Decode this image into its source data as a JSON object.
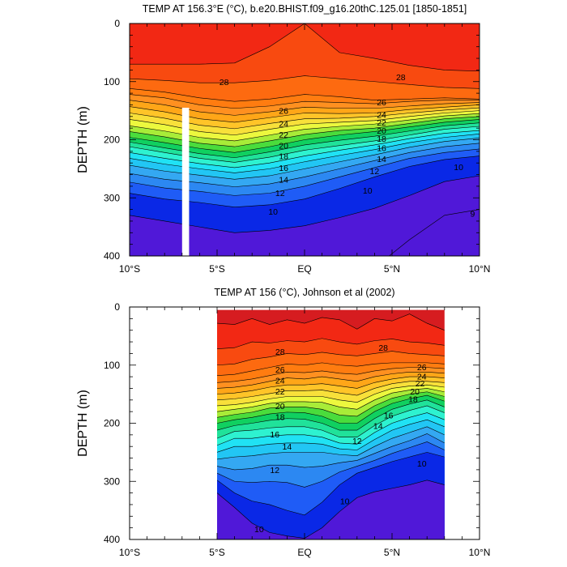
{
  "chart_data": [
    {
      "type": "heatmap",
      "subtype": "filled-contour",
      "title": "TEMP AT 156.3°E (°C), b.e20.BHIST.f09_g16.20thC.125.01 [1850-1851]",
      "ylabel": "DEPTH (m)",
      "xlabel": "",
      "xlim": [
        -10,
        10
      ],
      "ylim": [
        0,
        400
      ],
      "y_inverted": true,
      "x_ticks": [
        {
          "value": -10,
          "label": "10°S"
        },
        {
          "value": -5,
          "label": "5°S"
        },
        {
          "value": 0,
          "label": "EQ"
        },
        {
          "value": 5,
          "label": "5°N"
        },
        {
          "value": 10,
          "label": "10°N"
        }
      ],
      "y_ticks": [
        {
          "value": 0,
          "label": "0"
        },
        {
          "value": 100,
          "label": "100"
        },
        {
          "value": 200,
          "label": "200"
        },
        {
          "value": 300,
          "label": "300"
        },
        {
          "value": 400,
          "label": "400"
        }
      ],
      "contour_levels": [
        8,
        9,
        10,
        11,
        12,
        13,
        14,
        15,
        16,
        17,
        18,
        19,
        20,
        21,
        22,
        23,
        24,
        25,
        26,
        27,
        28,
        29
      ],
      "data_extent_x": [
        -10,
        10
      ],
      "missing_x": [
        -7,
        -6.6
      ],
      "missing_depth_from": 145,
      "isotherm_depths": {
        "x": [
          -10,
          -8,
          -6,
          -4,
          -2,
          0,
          2,
          4,
          6,
          8,
          10
        ],
        "29": [
          0,
          0,
          0,
          0,
          0,
          0,
          0,
          0,
          0,
          0,
          0
        ],
        "28": [
          70,
          70,
          70,
          68,
          40,
          0,
          50,
          60,
          72,
          80,
          82
        ],
        "27": [
          95,
          98,
          102,
          102,
          98,
          90,
          95,
          100,
          105,
          110,
          112
        ],
        "26": [
          112,
          118,
          128,
          134,
          130,
          122,
          126,
          132,
          130,
          128,
          130
        ],
        "25": [
          122,
          128,
          140,
          146,
          142,
          134,
          136,
          138,
          134,
          132,
          132
        ],
        "24": [
          132,
          140,
          152,
          158,
          152,
          144,
          146,
          146,
          142,
          138,
          136
        ],
        "23": [
          143,
          152,
          164,
          170,
          162,
          154,
          155,
          154,
          148,
          144,
          140
        ],
        "22": [
          154,
          163,
          175,
          181,
          172,
          164,
          163,
          160,
          154,
          149,
          145
        ],
        "21": [
          165,
          174,
          186,
          192,
          182,
          173,
          170,
          167,
          160,
          154,
          150
        ],
        "20": [
          176,
          185,
          196,
          202,
          192,
          182,
          177,
          173,
          166,
          159,
          155
        ],
        "19": [
          186,
          195,
          206,
          212,
          202,
          191,
          184,
          180,
          172,
          164,
          160
        ],
        "18": [
          196,
          205,
          215,
          222,
          212,
          200,
          192,
          186,
          178,
          170,
          165
        ],
        "17": [
          204,
          214,
          224,
          231,
          221,
          209,
          201,
          194,
          185,
          176,
          171
        ],
        "16": [
          212,
          222,
          232,
          239,
          230,
          218,
          210,
          202,
          192,
          182,
          177
        ],
        "15": [
          222,
          232,
          241,
          248,
          240,
          228,
          218,
          209,
          198,
          189,
          184
        ],
        "14": [
          232,
          242,
          250,
          257,
          250,
          238,
          227,
          217,
          205,
          196,
          190
        ],
        "13": [
          244,
          254,
          261,
          268,
          262,
          250,
          238,
          226,
          213,
          203,
          197
        ],
        "12": [
          258,
          268,
          274,
          281,
          276,
          264,
          250,
          236,
          222,
          212,
          206
        ],
        "11": [
          273,
          283,
          289,
          296,
          292,
          280,
          264,
          248,
          232,
          222,
          216
        ],
        "10": [
          292,
          302,
          308,
          316,
          312,
          302,
          284,
          264,
          246,
          234,
          228
        ],
        "9": [
          330,
          340,
          350,
          360,
          356,
          348,
          334,
          318,
          296,
          272,
          262
        ],
        "8": [
          430,
          430,
          430,
          430,
          430,
          430,
          430,
          420,
          372,
          330,
          320
        ]
      },
      "contour_labels": [
        {
          "text": "28",
          "x": -4.6,
          "y": 100
        },
        {
          "text": "28",
          "x": 5.5,
          "y": 92
        },
        {
          "text": "26",
          "x": -1.2,
          "y": 150
        },
        {
          "text": "26",
          "x": 4.4,
          "y": 135
        },
        {
          "text": "24",
          "x": -1.2,
          "y": 172
        },
        {
          "text": "24",
          "x": 4.4,
          "y": 157
        },
        {
          "text": "22",
          "x": -1.2,
          "y": 191
        },
        {
          "text": "22",
          "x": 4.4,
          "y": 170
        },
        {
          "text": "20",
          "x": -1.2,
          "y": 210
        },
        {
          "text": "20",
          "x": 4.4,
          "y": 184
        },
        {
          "text": "18",
          "x": -1.2,
          "y": 228
        },
        {
          "text": "18",
          "x": 4.4,
          "y": 198
        },
        {
          "text": "16",
          "x": -1.2,
          "y": 248
        },
        {
          "text": "16",
          "x": 4.4,
          "y": 214
        },
        {
          "text": "14",
          "x": -1.2,
          "y": 268
        },
        {
          "text": "14",
          "x": 4.4,
          "y": 233
        },
        {
          "text": "12",
          "x": -1.4,
          "y": 291
        },
        {
          "text": "12",
          "x": 4.0,
          "y": 254
        },
        {
          "text": "10",
          "x": -1.8,
          "y": 323
        },
        {
          "text": "10",
          "x": 3.6,
          "y": 287
        },
        {
          "text": "10",
          "x": 8.8,
          "y": 247
        },
        {
          "text": "9",
          "x": 9.6,
          "y": 327
        }
      ]
    },
    {
      "type": "heatmap",
      "subtype": "filled-contour",
      "title": "TEMP AT 156 (°C), Johnson et al (2002)",
      "ylabel": "DEPTH (m)",
      "xlabel": "",
      "xlim": [
        -10,
        10
      ],
      "ylim": [
        0,
        400
      ],
      "y_inverted": true,
      "x_ticks": [
        {
          "value": -10,
          "label": "10°S"
        },
        {
          "value": -5,
          "label": "5°S"
        },
        {
          "value": 0,
          "label": "EQ"
        },
        {
          "value": 5,
          "label": "5°N"
        },
        {
          "value": 10,
          "label": "10°N"
        }
      ],
      "y_ticks": [
        {
          "value": 0,
          "label": "0"
        },
        {
          "value": 100,
          "label": "100"
        },
        {
          "value": 200,
          "label": "200"
        },
        {
          "value": 300,
          "label": "300"
        },
        {
          "value": 400,
          "label": "400"
        }
      ],
      "contour_levels": [
        8,
        9,
        10,
        11,
        12,
        13,
        14,
        15,
        16,
        17,
        18,
        19,
        20,
        21,
        22,
        23,
        24,
        25,
        26,
        27,
        28,
        29
      ],
      "data_extent_x": [
        -5,
        8
      ],
      "data_top_depth": 5,
      "isotherm_depths": {
        "x": [
          -5,
          -4,
          -3,
          -2,
          -1,
          0,
          1,
          2,
          3,
          4,
          5,
          6,
          7,
          8
        ],
        "29": [
          28,
          30,
          20,
          30,
          22,
          28,
          18,
          22,
          38,
          20,
          24,
          12,
          28,
          40
        ],
        "28": [
          72,
          70,
          60,
          62,
          58,
          60,
          54,
          60,
          64,
          58,
          55,
          60,
          62,
          66
        ],
        "27": [
          100,
          98,
          90,
          86,
          80,
          82,
          78,
          82,
          84,
          80,
          76,
          80,
          82,
          84
        ],
        "26": [
          118,
          116,
          110,
          104,
          98,
          100,
          96,
          100,
          102,
          98,
          96,
          96,
          96,
          98
        ],
        "25": [
          130,
          128,
          124,
          118,
          112,
          113,
          110,
          114,
          116,
          110,
          106,
          104,
          104,
          106
        ],
        "24": [
          140,
          138,
          134,
          128,
          122,
          124,
          120,
          124,
          128,
          120,
          115,
          112,
          112,
          114
        ],
        "23": [
          150,
          148,
          144,
          138,
          134,
          134,
          132,
          136,
          140,
          130,
          124,
          120,
          120,
          122
        ],
        "22": [
          160,
          158,
          154,
          149,
          144,
          144,
          143,
          148,
          152,
          140,
          132,
          128,
          128,
          130
        ],
        "21": [
          170,
          168,
          164,
          158,
          154,
          154,
          154,
          160,
          164,
          150,
          140,
          136,
          134,
          138
        ],
        "20": [
          180,
          176,
          172,
          166,
          163,
          163,
          164,
          172,
          176,
          160,
          148,
          143,
          140,
          146
        ],
        "19": [
          190,
          185,
          181,
          174,
          172,
          172,
          176,
          186,
          188,
          170,
          157,
          150,
          146,
          154
        ],
        "18": [
          200,
          194,
          190,
          184,
          181,
          182,
          188,
          200,
          200,
          180,
          166,
          158,
          152,
          162
        ],
        "17": [
          212,
          204,
          200,
          195,
          192,
          193,
          200,
          212,
          212,
          192,
          176,
          167,
          160,
          172
        ],
        "16": [
          226,
          214,
          212,
          208,
          206,
          206,
          212,
          224,
          224,
          204,
          188,
          178,
          170,
          182
        ],
        "15": [
          238,
          226,
          226,
          222,
          220,
          220,
          224,
          234,
          236,
          216,
          200,
          190,
          182,
          194
        ],
        "14": [
          250,
          240,
          240,
          236,
          234,
          234,
          236,
          244,
          246,
          228,
          212,
          202,
          194,
          206
        ],
        "13": [
          262,
          258,
          256,
          252,
          250,
          250,
          250,
          254,
          256,
          240,
          226,
          216,
          206,
          220
        ],
        "12": [
          274,
          280,
          278,
          272,
          272,
          276,
          274,
          268,
          264,
          252,
          240,
          230,
          218,
          234
        ],
        "11": [
          286,
          300,
          302,
          300,
          302,
          310,
          300,
          284,
          274,
          264,
          252,
          242,
          232,
          246
        ],
        "10": [
          298,
          320,
          334,
          340,
          350,
          358,
          336,
          306,
          286,
          276,
          266,
          258,
          250,
          258
        ],
        "9": [
          320,
          345,
          372,
          388,
          394,
          398,
          380,
          352,
          328,
          318,
          312,
          306,
          298,
          306
        ],
        "8": [
          430,
          430,
          430,
          430,
          430,
          430,
          430,
          430,
          430,
          430,
          430,
          430,
          430,
          430
        ]
      },
      "contour_labels": [
        {
          "text": "28",
          "x": -1.4,
          "y": 77
        },
        {
          "text": "28",
          "x": 4.5,
          "y": 70
        },
        {
          "text": "26",
          "x": -1.4,
          "y": 107
        },
        {
          "text": "26",
          "x": 6.7,
          "y": 103
        },
        {
          "text": "24",
          "x": -1.4,
          "y": 126
        },
        {
          "text": "24",
          "x": 6.7,
          "y": 119
        },
        {
          "text": "22",
          "x": -1.4,
          "y": 145
        },
        {
          "text": "22",
          "x": 6.6,
          "y": 131
        },
        {
          "text": "20",
          "x": -1.4,
          "y": 170
        },
        {
          "text": "20",
          "x": 6.3,
          "y": 145
        },
        {
          "text": "18",
          "x": -1.4,
          "y": 189
        },
        {
          "text": "18",
          "x": 6.2,
          "y": 158
        },
        {
          "text": "16",
          "x": -1.7,
          "y": 219
        },
        {
          "text": "16",
          "x": 4.8,
          "y": 186
        },
        {
          "text": "14",
          "x": -1.0,
          "y": 240
        },
        {
          "text": "14",
          "x": 4.2,
          "y": 204
        },
        {
          "text": "12",
          "x": -1.7,
          "y": 280
        },
        {
          "text": "12",
          "x": 3.0,
          "y": 230
        },
        {
          "text": "10",
          "x": 2.3,
          "y": 334
        },
        {
          "text": "10",
          "x": -2.6,
          "y": 382
        },
        {
          "text": "10",
          "x": 6.7,
          "y": 269
        }
      ]
    }
  ]
}
